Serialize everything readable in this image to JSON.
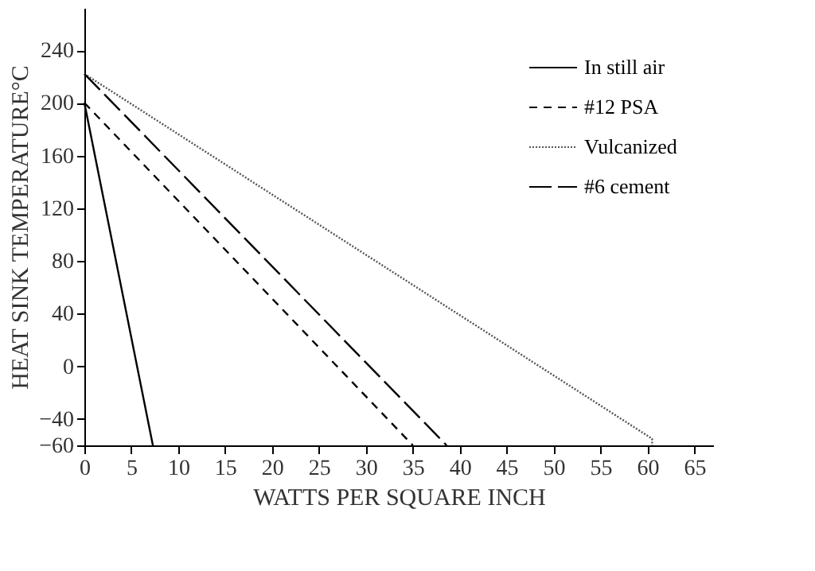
{
  "chart_data": {
    "type": "line",
    "xlabel": "WATTS PER SQUARE INCH",
    "ylabel": "HEAT SINK TEMPERATURE°C",
    "xlim": [
      0,
      67
    ],
    "ylim": [
      -60,
      272
    ],
    "xticks": [
      0,
      5,
      10,
      15,
      20,
      25,
      30,
      35,
      40,
      45,
      50,
      55,
      60,
      65
    ],
    "yticks": [
      -60,
      -40,
      0,
      40,
      80,
      120,
      160,
      200,
      240
    ],
    "grid": false,
    "legend": "top right",
    "marker": "none",
    "series": [
      {
        "name": "In still air",
        "color": "#000000",
        "line_style": "solid",
        "x": [
          0,
          7.3
        ],
        "values": [
          200,
          -60
        ]
      },
      {
        "name": "#12 PSA",
        "color": "#000000",
        "line_style": "dashed",
        "x": [
          0,
          35
        ],
        "values": [
          200,
          -60
        ]
      },
      {
        "name": "Vulcanized",
        "color": "#555555",
        "line_style": "dotted",
        "x": [
          0,
          60.5,
          60.5
        ],
        "values": [
          222,
          -55,
          -60
        ]
      },
      {
        "name": "#6 cement",
        "color": "#000000",
        "line_style": "longdash",
        "x": [
          0,
          38.6
        ],
        "values": [
          222,
          -60
        ]
      }
    ]
  }
}
